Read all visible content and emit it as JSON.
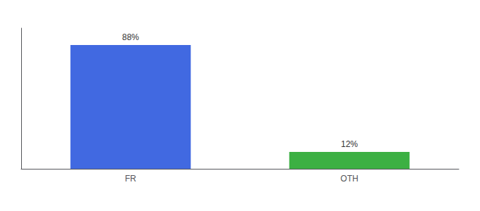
{
  "chart_data": {
    "type": "bar",
    "categories": [
      "FR",
      "OTH"
    ],
    "values": [
      88,
      12
    ],
    "value_labels": [
      "88%",
      "12%"
    ],
    "colors": [
      "#4169e1",
      "#3cb043"
    ],
    "ylim": [
      0,
      100
    ],
    "data_labels": true,
    "tick_labels": "x",
    "grid": false
  }
}
